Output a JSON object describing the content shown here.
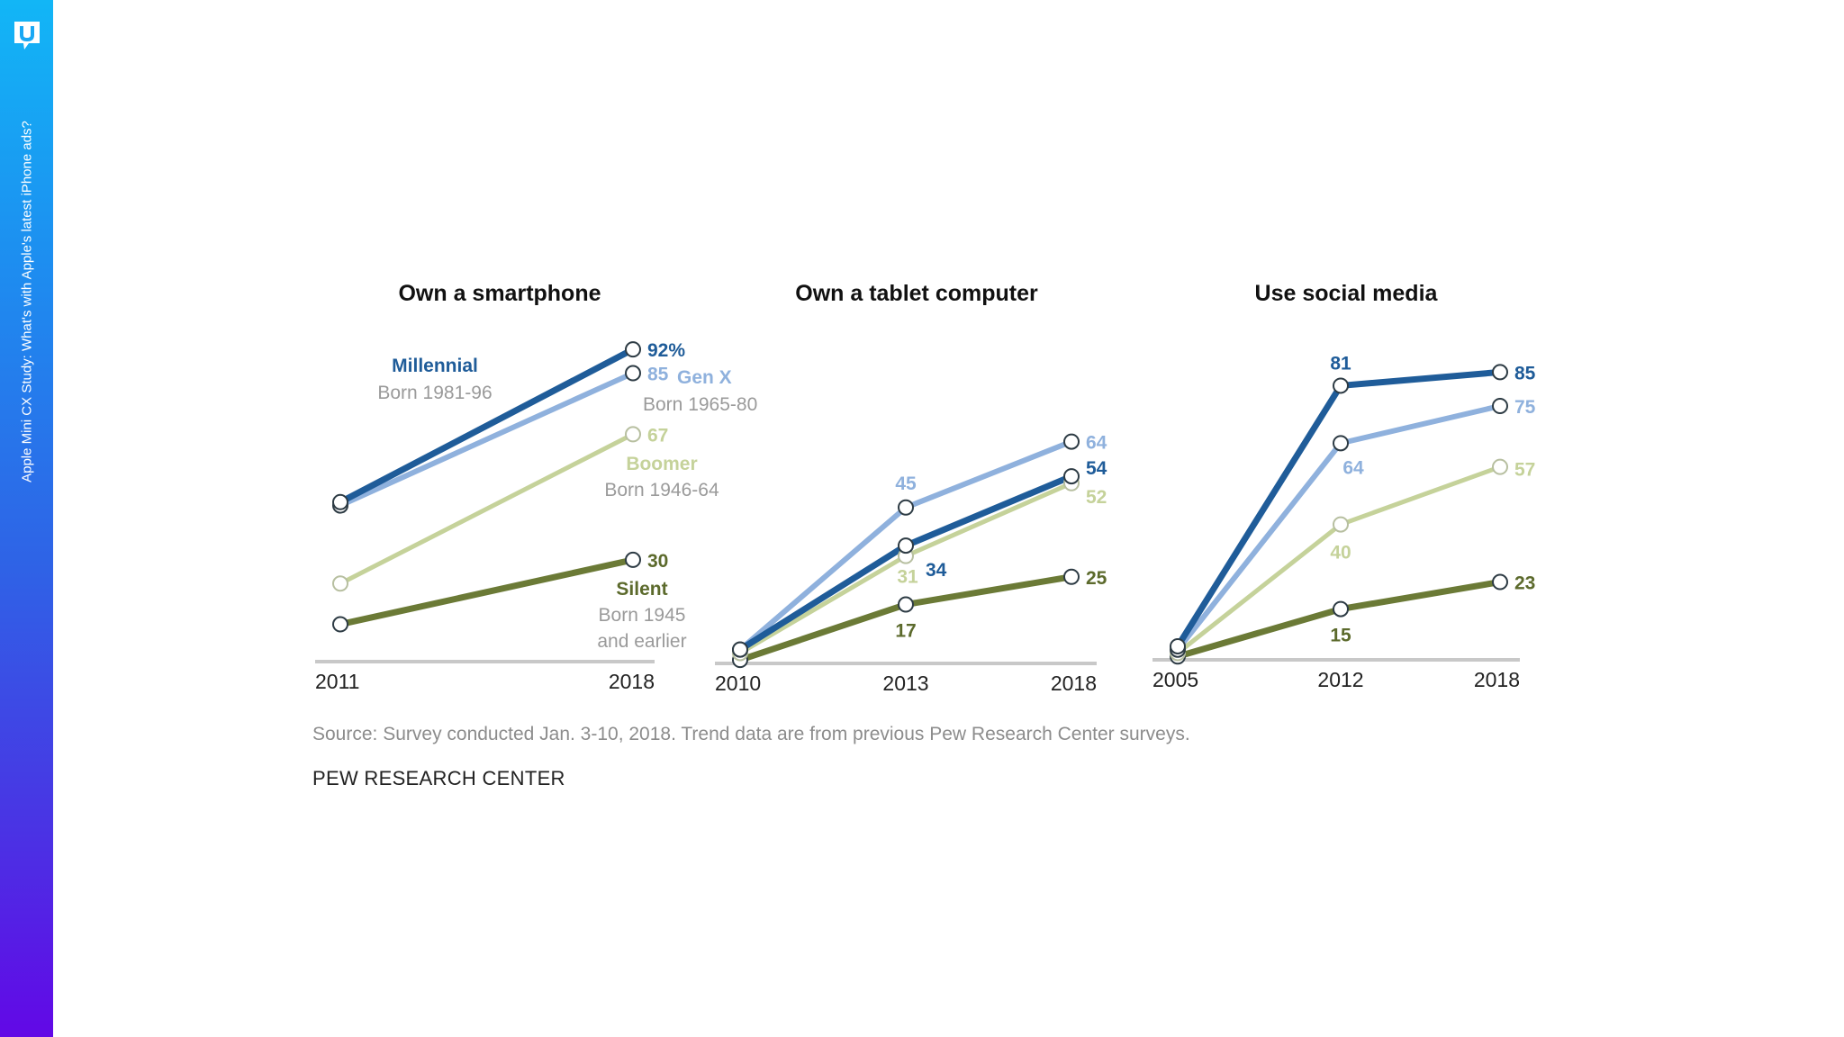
{
  "sidebar": {
    "logo_icon": "speech-bubble-u-logo-icon",
    "title": "Apple Mini CX Study: What's with Apple's latest iPhone ads?",
    "gradient_top": "#12b6f6",
    "gradient_bottom": "#6208e6"
  },
  "colors": {
    "Millennial": "#1f5c99",
    "Gen X": "#8fb1dd",
    "Boomer": "#c5d29a",
    "Silent": "#6b7a36"
  },
  "legend": [
    {
      "name": "Millennial",
      "sub": "Born 1981-96"
    },
    {
      "name": "Gen X",
      "sub": "Born 1965-80"
    },
    {
      "name": "Boomer",
      "sub": "Born 1946-64"
    },
    {
      "name": "Silent",
      "sub_line1": "Born 1945",
      "sub_line2": "and earlier"
    }
  ],
  "chart_data": [
    {
      "type": "line",
      "title": "Own a smartphone",
      "x": [
        "2011",
        "2018"
      ],
      "ylim": [
        0,
        100
      ],
      "unit": "%",
      "series": [
        {
          "name": "Millennial",
          "values": [
            47,
            92
          ],
          "labels": [
            "",
            "92%"
          ]
        },
        {
          "name": "Gen X",
          "values": [
            46,
            85
          ],
          "labels": [
            "",
            "85"
          ]
        },
        {
          "name": "Boomer",
          "values": [
            23,
            67
          ],
          "labels": [
            "",
            "67"
          ]
        },
        {
          "name": "Silent",
          "values": [
            11,
            30
          ],
          "labels": [
            "",
            "30"
          ]
        }
      ]
    },
    {
      "type": "line",
      "title": "Own a tablet computer",
      "x": [
        "2010",
        "2013",
        "2018"
      ],
      "ylim": [
        0,
        100
      ],
      "unit": "%",
      "series": [
        {
          "name": "Millennial",
          "values": [
            4,
            34,
            54
          ],
          "labels": [
            "",
            "34",
            "54"
          ]
        },
        {
          "name": "Gen X",
          "values": [
            4,
            45,
            64
          ],
          "labels": [
            "",
            "45",
            "64"
          ]
        },
        {
          "name": "Boomer",
          "values": [
            3,
            31,
            52
          ],
          "labels": [
            "",
            "31",
            "52"
          ]
        },
        {
          "name": "Silent",
          "values": [
            1,
            17,
            25
          ],
          "labels": [
            "",
            "17",
            "25"
          ]
        }
      ]
    },
    {
      "type": "line",
      "title": "Use social media",
      "x": [
        "2005",
        "2012",
        "2018"
      ],
      "ylim": [
        0,
        100
      ],
      "unit": "%",
      "series": [
        {
          "name": "Millennial",
          "values": [
            4,
            81,
            85
          ],
          "labels": [
            "",
            "81",
            "85"
          ]
        },
        {
          "name": "Gen X",
          "values": [
            3,
            64,
            75
          ],
          "labels": [
            "",
            "64",
            "75"
          ]
        },
        {
          "name": "Boomer",
          "values": [
            2,
            40,
            57
          ],
          "labels": [
            "",
            "40",
            "57"
          ]
        },
        {
          "name": "Silent",
          "values": [
            1,
            15,
            23
          ],
          "labels": [
            "",
            "15",
            "23"
          ]
        }
      ]
    }
  ],
  "footer": {
    "source": "Source: Survey conducted Jan. 3-10, 2018. Trend data are from previous Pew Research Center surveys.",
    "organization": "PEW RESEARCH CENTER"
  }
}
